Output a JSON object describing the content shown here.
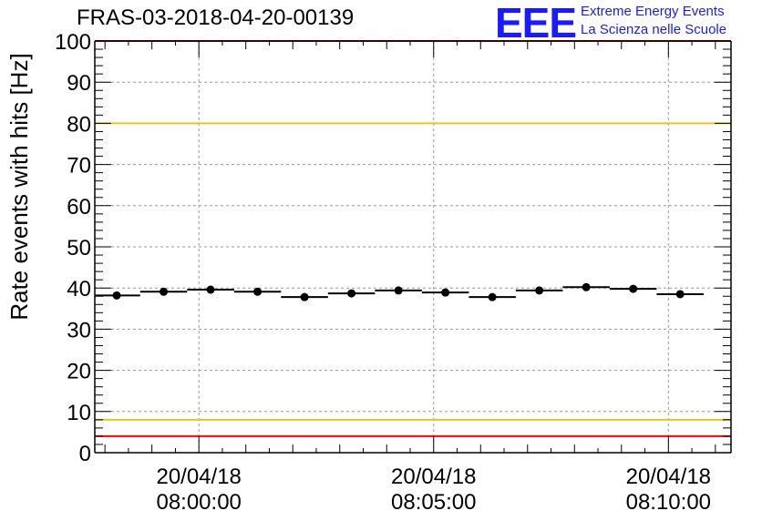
{
  "header": {
    "title": "FRAS-03-2018-04-20-00139",
    "logo_text": "EEE",
    "logo_line1": "Extreme Energy Events",
    "logo_line2": "La Scienza nelle Scuole"
  },
  "colors": {
    "axis": "#000000",
    "grid": "#999999",
    "limit_high": "#ff0000",
    "limit_warn": "#e6c619",
    "points": "#000000",
    "logo": "#1a1aff"
  },
  "chart_data": {
    "type": "scatter",
    "title": "FRAS-03-2018-04-20-00139",
    "ylabel": "Rate events with hits [Hz]",
    "xlabel": "",
    "ylim": [
      0,
      100
    ],
    "xlim": [
      "07:57:47",
      "08:11:20"
    ],
    "grid": true,
    "yticks": [
      0,
      10,
      20,
      30,
      40,
      50,
      60,
      70,
      80,
      90,
      100
    ],
    "xticks": [
      {
        "time": "08:00:00",
        "date": "20/04/18"
      },
      {
        "time": "08:05:00",
        "date": "20/04/18"
      },
      {
        "time": "08:10:00",
        "date": "20/04/18"
      }
    ],
    "reference_lines": [
      {
        "y": 100,
        "color": "#ff0000"
      },
      {
        "y": 80,
        "color": "#e6c619"
      },
      {
        "y": 8,
        "color": "#e6c619"
      },
      {
        "y": 4,
        "color": "#ff0000"
      }
    ],
    "bin_width_seconds": 60,
    "series": [
      {
        "x": [
          "07:58:15",
          "07:59:15",
          "08:00:15",
          "08:01:15",
          "08:02:15",
          "08:03:15",
          "08:04:15",
          "08:05:15",
          "08:06:15",
          "08:07:15",
          "08:08:15",
          "08:09:15",
          "08:10:15"
        ],
        "y": [
          38.2,
          39.1,
          39.6,
          39.1,
          37.8,
          38.7,
          39.4,
          38.9,
          37.8,
          39.4,
          40.2,
          39.8,
          38.5
        ]
      }
    ]
  }
}
